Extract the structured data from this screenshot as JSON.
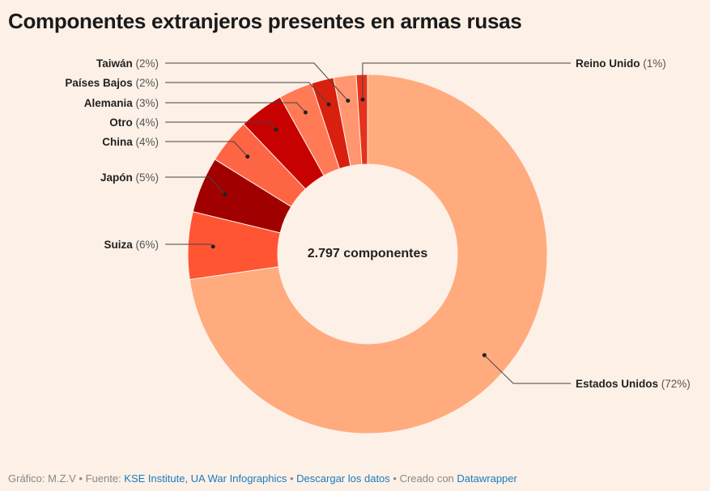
{
  "title": "Componentes extranjeros presentes en armas rusas",
  "chart_data": {
    "type": "pie",
    "donut": true,
    "center_label": "2.797 componentes",
    "slices": [
      {
        "name": "Estados Unidos",
        "value": 72,
        "pct_label": "(72%)",
        "color": "#ffab7e"
      },
      {
        "name": "Suiza",
        "value": 6,
        "pct_label": "(6%)",
        "color": "#ff5533"
      },
      {
        "name": "Japón",
        "value": 5,
        "pct_label": "(5%)",
        "color": "#a10000"
      },
      {
        "name": "China",
        "value": 4,
        "pct_label": "(4%)",
        "color": "#fd6544"
      },
      {
        "name": "Otro",
        "value": 4,
        "pct_label": "(4%)",
        "color": "#c70000"
      },
      {
        "name": "Alemania",
        "value": 3,
        "pct_label": "(3%)",
        "color": "#ff7a55"
      },
      {
        "name": "Países Bajos",
        "value": 2,
        "pct_label": "(2%)",
        "color": "#d9200f"
      },
      {
        "name": "Taiwán",
        "value": 2,
        "pct_label": "(2%)",
        "color": "#ff9670"
      },
      {
        "name": "Reino Unido",
        "value": 1,
        "pct_label": "(1%)",
        "color": "#e6321c"
      }
    ]
  },
  "footer": {
    "credit": "Gráfico: M.Z.V",
    "sep1": " • Fuente: ",
    "source": "KSE Institute, UA War Infographics",
    "sep2": "  • ",
    "download": "Descargar los datos",
    "sep3": " • Creado con ",
    "tool": "Datawrapper"
  }
}
